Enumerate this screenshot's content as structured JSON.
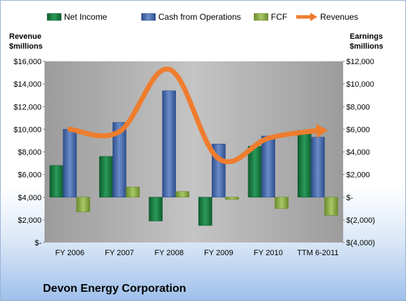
{
  "chart_data": {
    "type": "bar",
    "title": "Devon Energy Corporation",
    "categories": [
      "FY 2006",
      "FY 2007",
      "FY 2008",
      "FY 2009",
      "FY 2010",
      "TTM 6-2011"
    ],
    "left_axis": {
      "label_line1": "Revenue",
      "label_line2": "$millions",
      "range": [
        0,
        16000
      ],
      "ticks": [
        0,
        2000,
        4000,
        6000,
        8000,
        10000,
        12000,
        14000,
        16000
      ],
      "tick_labels": [
        "$-",
        "$2,000",
        "$4,000",
        "$6,000",
        "$8,000",
        "$10,000",
        "$12,000",
        "$14,000",
        "$16,000"
      ]
    },
    "right_axis": {
      "label_line1": "Earnings",
      "label_line2": "$millions",
      "range": [
        -4000,
        12000
      ],
      "ticks": [
        -4000,
        -2000,
        0,
        2000,
        4000,
        6000,
        8000,
        10000,
        12000
      ],
      "tick_labels": [
        "$(4,000)",
        "$(2,000)",
        "$-",
        "$2,000",
        "$4,000",
        "$6,000",
        "$8,000",
        "$10,000",
        "$12,000"
      ]
    },
    "series": [
      {
        "name": "Net Income",
        "type": "bar",
        "axis": "right",
        "color": "#1f8a4c",
        "values": [
          2800,
          3600,
          -2100,
          -2500,
          4500,
          5900
        ]
      },
      {
        "name": "Cash from Operations",
        "type": "bar",
        "axis": "right",
        "color": "#4a6fb0",
        "values": [
          6000,
          6600,
          9400,
          4700,
          5400,
          5300
        ]
      },
      {
        "name": "FCF",
        "type": "bar",
        "axis": "right",
        "color": "#8fb04a",
        "values": [
          -1300,
          900,
          500,
          -200,
          -1000,
          -1600
        ]
      },
      {
        "name": "Revenues",
        "type": "line",
        "axis": "left",
        "color": "#ee7d2e",
        "values": [
          10000,
          9800,
          15300,
          7400,
          9200,
          9900
        ]
      }
    ],
    "grid": false,
    "legend_position": "top"
  }
}
